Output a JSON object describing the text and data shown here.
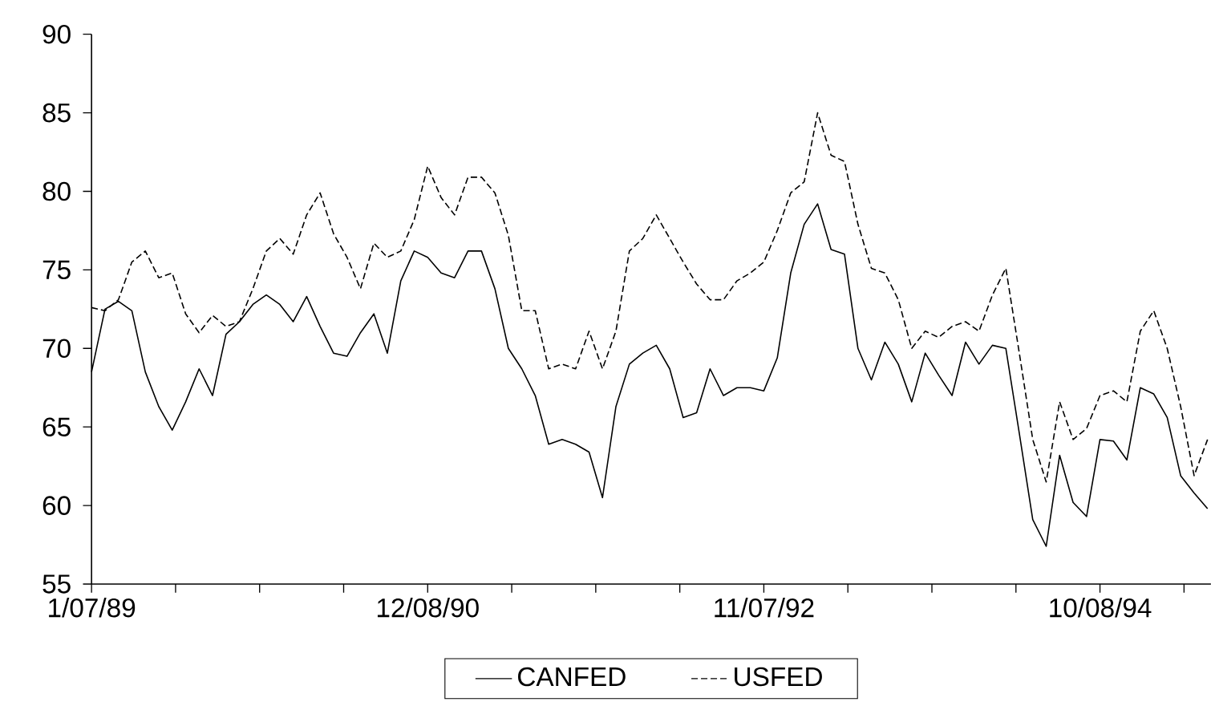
{
  "chart_data": {
    "type": "line",
    "x": [
      "1989-01-07",
      "1989-02-04",
      "1989-03-04",
      "1989-04-01",
      "1989-04-29",
      "1989-05-27",
      "1989-06-24",
      "1989-07-22",
      "1989-08-19",
      "1989-09-16",
      "1989-10-14",
      "1989-11-11",
      "1989-12-09",
      "1990-01-06",
      "1990-02-03",
      "1990-03-03",
      "1990-03-31",
      "1990-04-28",
      "1990-05-26",
      "1990-06-23",
      "1990-07-21",
      "1990-08-18",
      "1990-09-15",
      "1990-10-13",
      "1990-11-10",
      "1990-12-08",
      "1991-01-05",
      "1991-02-02",
      "1991-03-02",
      "1991-03-30",
      "1991-04-27",
      "1991-05-25",
      "1991-06-22",
      "1991-07-20",
      "1991-08-17",
      "1991-09-14",
      "1991-10-12",
      "1991-11-09",
      "1991-12-07",
      "1992-01-04",
      "1992-02-01",
      "1992-02-29",
      "1992-03-28",
      "1992-04-25",
      "1992-05-23",
      "1992-06-20",
      "1992-07-18",
      "1992-08-15",
      "1992-09-12",
      "1992-10-10",
      "1992-11-07",
      "1992-12-05",
      "1993-01-02",
      "1993-01-30",
      "1993-02-27",
      "1993-03-27",
      "1993-04-24",
      "1993-05-22",
      "1993-06-19",
      "1993-07-17",
      "1993-08-14",
      "1993-09-11",
      "1993-10-09",
      "1993-11-06",
      "1993-12-04",
      "1994-01-01",
      "1994-01-29",
      "1994-02-26",
      "1994-03-26",
      "1994-04-23",
      "1994-05-21",
      "1994-06-18",
      "1994-07-16",
      "1994-08-13",
      "1994-09-10",
      "1994-10-08",
      "1994-11-05",
      "1994-12-03",
      "1994-12-31",
      "1995-01-28",
      "1995-02-25",
      "1995-03-25",
      "1995-04-22",
      "1995-05-20"
    ],
    "series": [
      {
        "name": "CANFED",
        "color": "#000000",
        "line_style": "solid",
        "values": [
          68.5,
          72.5,
          73.0,
          72.4,
          68.5,
          66.3,
          64.8,
          66.6,
          68.7,
          67.0,
          70.9,
          71.7,
          72.8,
          73.4,
          72.8,
          71.7,
          73.3,
          71.4,
          69.7,
          69.5,
          71.0,
          72.2,
          69.7,
          74.3,
          76.2,
          75.8,
          74.8,
          74.5,
          76.2,
          76.2,
          73.8,
          70.0,
          68.7,
          67.0,
          63.9,
          64.2,
          63.9,
          63.4,
          60.5,
          66.3,
          69.0,
          69.7,
          70.2,
          68.7,
          65.6,
          65.9,
          68.7,
          67.0,
          67.5,
          67.5,
          67.3,
          69.4,
          74.8,
          77.9,
          79.2,
          76.3,
          76.0,
          70.0,
          68.0,
          70.4,
          69.0,
          66.6,
          69.7,
          68.3,
          67.0,
          70.4,
          69.0,
          70.2,
          70.0,
          64.6,
          59.1,
          57.4,
          63.2,
          60.2,
          59.3,
          64.2,
          64.1,
          62.9,
          67.5,
          67.1,
          65.6,
          61.9,
          60.8,
          59.8
        ]
      },
      {
        "name": "USFED",
        "color": "#000000",
        "line_style": "dashed",
        "values": [
          72.6,
          72.4,
          73.1,
          75.5,
          76.2,
          74.5,
          74.8,
          72.2,
          71.0,
          72.1,
          71.4,
          71.7,
          73.8,
          76.2,
          77.0,
          76.0,
          78.5,
          79.9,
          77.3,
          75.8,
          73.8,
          76.7,
          75.8,
          76.2,
          78.2,
          81.6,
          79.6,
          78.5,
          80.9,
          80.9,
          79.9,
          77.2,
          72.4,
          72.4,
          68.7,
          69.0,
          68.7,
          71.1,
          68.7,
          71.1,
          76.2,
          77.0,
          78.5,
          77.0,
          75.5,
          74.1,
          73.1,
          73.1,
          74.3,
          74.8,
          75.5,
          77.5,
          79.9,
          80.6,
          85.0,
          82.3,
          81.9,
          77.9,
          75.1,
          74.8,
          73.1,
          70.0,
          71.1,
          70.7,
          71.4,
          71.7,
          71.1,
          73.4,
          75.1,
          69.7,
          64.2,
          61.5,
          66.6,
          64.2,
          64.9,
          67.0,
          67.3,
          66.6,
          71.1,
          72.4,
          70.0,
          66.3,
          61.9,
          64.2
        ]
      }
    ],
    "xlim": [
      "1989-01-07",
      "1995-05-27"
    ],
    "xticks": [
      {
        "value": "1989-01-07",
        "label": "1/07/89"
      },
      {
        "value": "1989-07-01",
        "label": null
      },
      {
        "value": "1989-12-23",
        "label": null
      },
      {
        "value": "1990-06-16",
        "label": null
      },
      {
        "value": "1990-12-08",
        "label": "12/08/90"
      },
      {
        "value": "1991-06-01",
        "label": null
      },
      {
        "value": "1991-11-23",
        "label": null
      },
      {
        "value": "1992-05-16",
        "label": null
      },
      {
        "value": "1992-11-07",
        "label": "11/07/92"
      },
      {
        "value": "1993-05-01",
        "label": null
      },
      {
        "value": "1993-10-23",
        "label": null
      },
      {
        "value": "1994-04-16",
        "label": null
      },
      {
        "value": "1994-10-08",
        "label": "10/08/94"
      },
      {
        "value": "1995-04-01",
        "label": null
      }
    ],
    "ylim": [
      55,
      90
    ],
    "yticks": [
      55,
      60,
      65,
      70,
      75,
      80,
      85,
      90
    ],
    "grid": false,
    "legend": "bottom"
  }
}
